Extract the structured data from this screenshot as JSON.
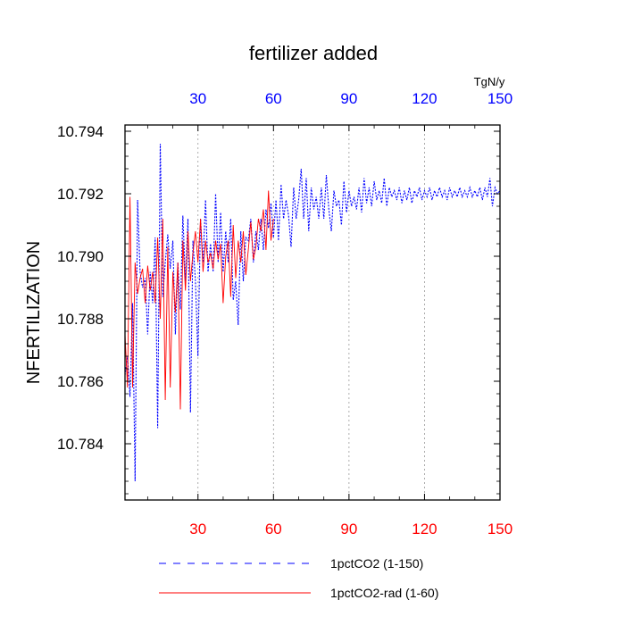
{
  "chart_data": {
    "type": "line",
    "title": "fertilizer added",
    "ylabel": "NFERTILIZATION",
    "top_axis_unit": "TgN/y",
    "xlim": [
      1,
      150
    ],
    "ylim": [
      10.7822,
      10.7942
    ],
    "x_ticks": [
      "30",
      "60",
      "90",
      "120",
      "150"
    ],
    "x_tick_values": [
      30,
      60,
      90,
      120,
      150
    ],
    "top_x_ticks": [
      "30",
      "60",
      "90",
      "120",
      "150"
    ],
    "y_ticks": [
      "10.794",
      "10.792",
      "10.790",
      "10.788",
      "10.786",
      "10.784"
    ],
    "y_tick_values": [
      10.794,
      10.792,
      10.79,
      10.788,
      10.786,
      10.784
    ],
    "bottom_tick_color": "#ff0000",
    "top_tick_color": "#0000ff",
    "grid": "vertical dotted at 30, 60, 90, 120",
    "legend_placement": "bottom",
    "series": [
      {
        "name": "1pctCO2 (1-150)",
        "color": "#0000ff",
        "style": "dashed",
        "x": [
          1,
          2,
          3,
          4,
          5,
          6,
          7,
          8,
          9,
          10,
          11,
          12,
          13,
          14,
          15,
          16,
          17,
          18,
          19,
          20,
          21,
          22,
          23,
          24,
          25,
          26,
          27,
          28,
          29,
          30,
          31,
          32,
          33,
          34,
          35,
          36,
          37,
          38,
          39,
          40,
          41,
          42,
          43,
          44,
          45,
          46,
          47,
          48,
          49,
          50,
          51,
          52,
          53,
          54,
          55,
          56,
          57,
          58,
          59,
          60,
          61,
          62,
          63,
          64,
          65,
          66,
          67,
          68,
          69,
          70,
          71,
          72,
          73,
          74,
          75,
          76,
          77,
          78,
          79,
          80,
          81,
          82,
          83,
          84,
          85,
          86,
          87,
          88,
          89,
          90,
          91,
          92,
          93,
          94,
          95,
          96,
          97,
          98,
          99,
          100,
          101,
          102,
          103,
          104,
          105,
          106,
          107,
          108,
          109,
          110,
          111,
          112,
          113,
          114,
          115,
          116,
          117,
          118,
          119,
          120,
          121,
          122,
          123,
          124,
          125,
          126,
          127,
          128,
          129,
          130,
          131,
          132,
          133,
          134,
          135,
          136,
          137,
          138,
          139,
          140,
          141,
          142,
          143,
          144,
          145,
          146,
          147,
          148,
          149,
          150
        ],
        "values": [
          10.7862,
          10.7868,
          10.7855,
          10.7885,
          10.7828,
          10.7918,
          10.7895,
          10.789,
          10.7893,
          10.7875,
          10.7895,
          10.7885,
          10.7906,
          10.7845,
          10.7936,
          10.7887,
          10.7898,
          10.7907,
          10.7896,
          10.7905,
          10.7875,
          10.7898,
          10.7883,
          10.7913,
          10.7892,
          10.7912,
          10.785,
          10.7905,
          10.7892,
          10.7868,
          10.7912,
          10.7898,
          10.7918,
          10.7895,
          10.7904,
          10.7895,
          10.792,
          10.7898,
          10.7914,
          10.7895,
          10.7908,
          10.7898,
          10.7912,
          10.7886,
          10.7892,
          10.7878,
          10.7908,
          10.7892,
          10.7906,
          10.7905,
          10.7912,
          10.7898,
          10.7908,
          10.7902,
          10.7912,
          10.7902,
          10.7915,
          10.7909,
          10.7917,
          10.7906,
          10.7918,
          10.7905,
          10.7923,
          10.7912,
          10.7918,
          10.7913,
          10.7903,
          10.7922,
          10.7912,
          10.7918,
          10.7928,
          10.7912,
          10.7925,
          10.7908,
          10.7922,
          10.7915,
          10.7919,
          10.7912,
          10.7922,
          10.7912,
          10.7926,
          10.7915,
          10.7908,
          10.7921,
          10.7916,
          10.7918,
          10.791,
          10.7924,
          10.7914,
          10.7921,
          10.7916,
          10.7919,
          10.7915,
          10.7922,
          10.7914,
          10.7925,
          10.7917,
          10.7922,
          10.7916,
          10.7924,
          10.7918,
          10.7921,
          10.7917,
          10.7925,
          10.7916,
          10.7922,
          10.7919,
          10.7921,
          10.7918,
          10.7922,
          10.7917,
          10.7921,
          10.7918,
          10.7922,
          10.7917,
          10.7921,
          10.7919,
          10.7922,
          10.7918,
          10.7921,
          10.7919,
          10.7922,
          10.7918,
          10.7921,
          10.7919,
          10.7922,
          10.7919,
          10.7921,
          10.7918,
          10.7922,
          10.7919,
          10.7921,
          10.7919,
          10.7922,
          10.7919,
          10.7921,
          10.7919,
          10.7922,
          10.7919,
          10.7921,
          10.7919,
          10.7922,
          10.7918,
          10.7922,
          10.7919,
          10.7925,
          10.7916,
          10.7922,
          10.792,
          10.7921
        ]
      },
      {
        "name": "1pctCO2-rad (1-60)",
        "color": "#ff0000",
        "style": "solid",
        "x": [
          1,
          2,
          3,
          4,
          5,
          6,
          7,
          8,
          9,
          10,
          11,
          12,
          13,
          14,
          15,
          16,
          17,
          18,
          19,
          20,
          21,
          22,
          23,
          24,
          25,
          26,
          27,
          28,
          29,
          30,
          31,
          32,
          33,
          34,
          35,
          36,
          37,
          38,
          39,
          40,
          41,
          42,
          43,
          44,
          45,
          46,
          47,
          48,
          49,
          50,
          51,
          52,
          53,
          54,
          55,
          56,
          57,
          58,
          59,
          60
        ],
        "values": [
          10.7875,
          10.7858,
          10.7919,
          10.7858,
          10.7898,
          10.7888,
          10.7893,
          10.7896,
          10.7885,
          10.7897,
          10.7889,
          10.7895,
          10.7885,
          10.7906,
          10.788,
          10.7912,
          10.7854,
          10.7903,
          10.7858,
          10.7895,
          10.7882,
          10.7898,
          10.7851,
          10.7905,
          10.7889,
          10.7908,
          10.7892,
          10.7901,
          10.7908,
          10.7898,
          10.7912,
          10.7895,
          10.7905,
          10.7898,
          10.7901,
          10.7896,
          10.7905,
          10.7899,
          10.7904,
          10.7885,
          10.79,
          10.7905,
          10.7887,
          10.791,
          10.7893,
          10.7905,
          10.7898,
          10.7908,
          10.7894,
          10.7902,
          10.7911,
          10.7899,
          10.7903,
          10.7912,
          10.7908,
          10.7915,
          10.7902,
          10.7921,
          10.7905,
          10.7912
        ]
      }
    ]
  }
}
